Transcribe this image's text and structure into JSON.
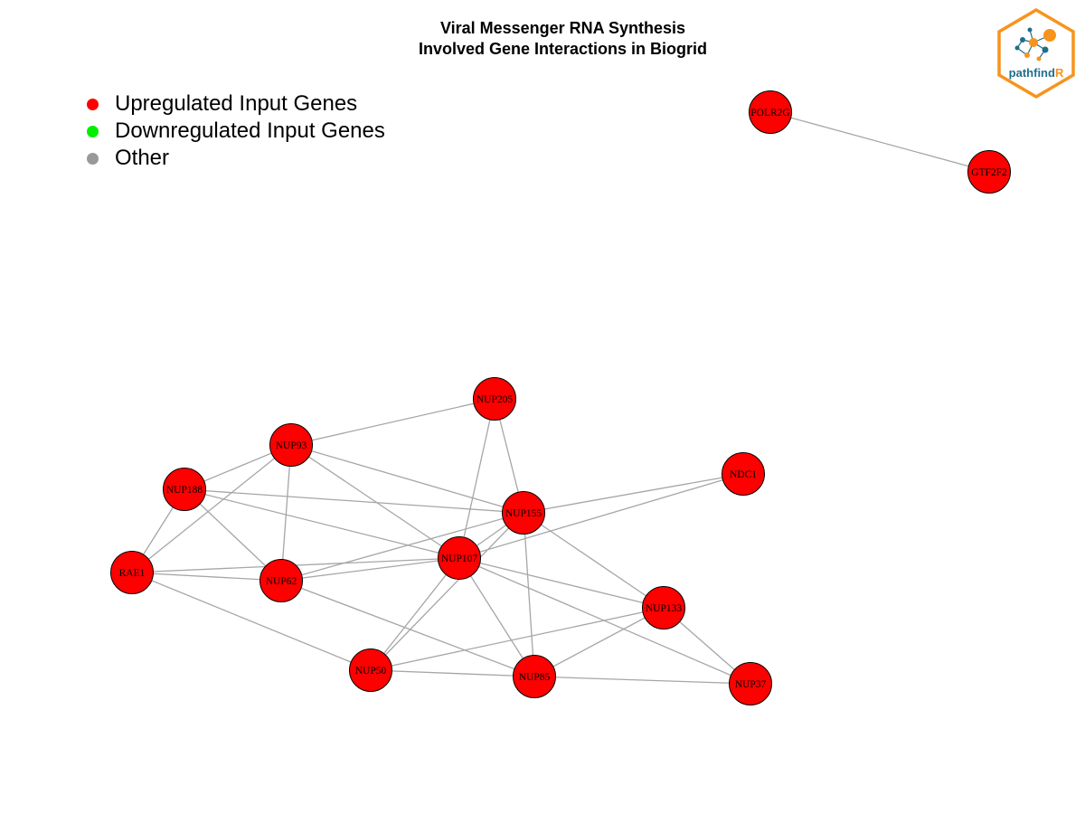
{
  "title": {
    "line1": "Viral Messenger RNA Synthesis",
    "line2": "Involved Gene Interactions in Biogrid"
  },
  "legend": {
    "items": [
      {
        "label": "Upregulated Input Genes",
        "color": "#ff0000"
      },
      {
        "label": "Downregulated Input Genes",
        "color": "#00ee00"
      },
      {
        "label": "Other",
        "color": "#999999"
      }
    ]
  },
  "logo": {
    "text_main": "pathfind",
    "text_accent": "R",
    "border_color": "#f7941d"
  },
  "colors": {
    "node_fill": "#ff0000",
    "node_stroke": "#000000",
    "edge": "#a6a6a6"
  },
  "network": {
    "nodes": [
      "POLR2G",
      "GTF2F2",
      "NUP205",
      "NUP93",
      "NUP188",
      "NDC1",
      "NUP155",
      "NUP107",
      "RAE1",
      "NUP62",
      "NUP133",
      "NUP50",
      "NUP85",
      "NUP37"
    ],
    "edges": [
      [
        "POLR2G",
        "GTF2F2"
      ],
      [
        "NUP205",
        "NUP93"
      ],
      [
        "NUP205",
        "NUP155"
      ],
      [
        "NUP205",
        "NUP107"
      ],
      [
        "NUP93",
        "NUP188"
      ],
      [
        "NUP93",
        "RAE1"
      ],
      [
        "NUP93",
        "NUP62"
      ],
      [
        "NUP93",
        "NUP155"
      ],
      [
        "NUP93",
        "NUP107"
      ],
      [
        "NUP188",
        "RAE1"
      ],
      [
        "NUP188",
        "NUP62"
      ],
      [
        "NUP188",
        "NUP155"
      ],
      [
        "NUP188",
        "NUP107"
      ],
      [
        "RAE1",
        "NUP62"
      ],
      [
        "RAE1",
        "NUP107"
      ],
      [
        "RAE1",
        "NUP50"
      ],
      [
        "NUP62",
        "NUP155"
      ],
      [
        "NUP62",
        "NUP107"
      ],
      [
        "NUP62",
        "NUP85"
      ],
      [
        "NDC1",
        "NUP155"
      ],
      [
        "NDC1",
        "NUP107"
      ],
      [
        "NUP155",
        "NUP107"
      ],
      [
        "NUP155",
        "NUP133"
      ],
      [
        "NUP155",
        "NUP85"
      ],
      [
        "NUP155",
        "NUP50"
      ],
      [
        "NUP107",
        "NUP133"
      ],
      [
        "NUP107",
        "NUP50"
      ],
      [
        "NUP107",
        "NUP85"
      ],
      [
        "NUP107",
        "NUP37"
      ],
      [
        "NUP133",
        "NUP50"
      ],
      [
        "NUP133",
        "NUP85"
      ],
      [
        "NUP133",
        "NUP37"
      ],
      [
        "NUP50",
        "NUP85"
      ],
      [
        "NUP85",
        "NUP37"
      ]
    ]
  }
}
